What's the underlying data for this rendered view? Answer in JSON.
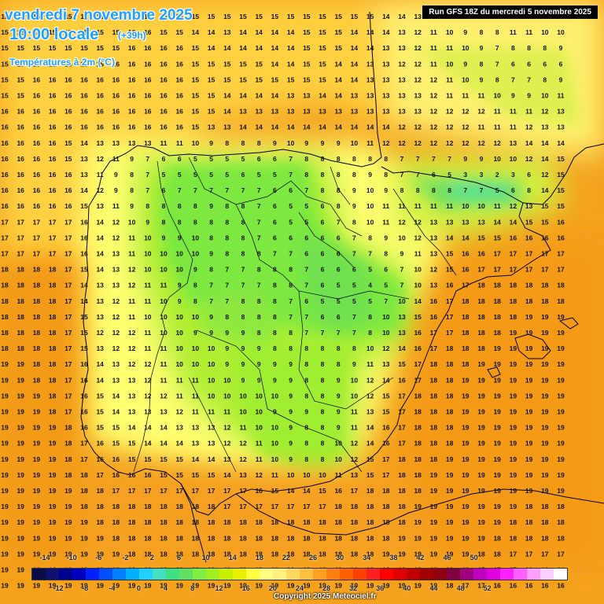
{
  "header": {
    "date": "vendredi 7 novembre 2025",
    "time": "10:00 locale",
    "lead": "(+39h)",
    "variable": "Températures à 2m (°C)",
    "run": "Run GFS 18Z du mercredi 5 novembre 2025"
  },
  "legend": {
    "top_ticks": [
      "-14",
      "-10",
      "-6",
      "-2",
      "2",
      "6",
      "10",
      "14",
      "18",
      "22",
      "26",
      "30",
      "34",
      "38",
      "42",
      "46",
      "50"
    ],
    "bottom_ticks": [
      "-12",
      "-8",
      "-4",
      "0",
      "4",
      "8",
      "12",
      "16",
      "20",
      "24",
      "28",
      "32",
      "36",
      "40",
      "44",
      "48",
      "52"
    ],
    "colors": [
      "#0b0b45",
      "#101070",
      "#000090",
      "#0000c0",
      "#0020ff",
      "#0050ff",
      "#0080ff",
      "#00b0ff",
      "#20d0ff",
      "#40e0c0",
      "#40e080",
      "#60e060",
      "#80f040",
      "#a0f020",
      "#c8f000",
      "#e8f000",
      "#ffff40",
      "#ffff80",
      "#fff080",
      "#ffd860",
      "#ffc040",
      "#ffa020",
      "#ff8010",
      "#ff6000",
      "#ff4000",
      "#ff2020",
      "#ff0000",
      "#e00000",
      "#c00000",
      "#a00000",
      "#900010",
      "#800040",
      "#a00080",
      "#c000c0",
      "#e000e0",
      "#ff20ff",
      "#ff60ff",
      "#ffa0ff",
      "#ffd0ff",
      "#ffffff"
    ]
  },
  "copyright": "Copyright 2025 Meteociel.fr",
  "grid_rows": [
    "15 15 15 15 15 15 15 15 15 15 15 15 15 15 15 15 15 15 15 15 15 15 15 15 14 14 13 12 11 10 9 8 11 11 11 11",
    "15 15 15 15 15 15 15 15 16 16 15 15 14 14 13 14 14 14 14 15 15 15 14 14 14 13 12 11 10 9 8 8 11 11 10 10",
    "15 15 15 15 15 15 15 15 16 16 16 16 15 14 14 14 14 14 14 15 15 15 14 14 13 13 12 11 11 10 9 7 8 8 8 9",
    "15 15 15 15 15 15 15 16 16 16 16 16 15 15 15 15 15 14 14 15 15 14 14 13 13 12 12 11 10 9 8 7 6 6 6 6",
    "15 15 16 16 16 16 16 16 16 16 16 16 15 15 15 15 15 15 15 15 15 14 14 13 13 13 12 12 11 10 9 8 7 7 8 9",
    "15 15 16 16 16 16 16 16 16 16 16 16 15 15 14 14 14 14 13 13 14 14 13 13 13 13 13 12 11 11 11 10 9 9 10 11",
    "16 16 16 16 16 16 16 16 16 16 16 16 15 15 14 13 13 13 13 13 13 13 13 13 13 13 13 12 12 12 12 11 11 11 12 13",
    "16 16 16 16 16 16 16 16 16 16 16 16 15 13 13 14 14 14 14 14 14 14 14 14 14 12 12 12 12 12 11 11 11 12 13 13",
    "16 16 16 16 15 14 13 13 13 13 11 11 10 9 8 8 8 9 10 9 9 9 10 11 12 12 12 12 12 12 12 12 13 14 14 14",
    "16 16 16 16 15 13 12 11 9 7 6 6 5 5 5 5 6 6 7 8 8 8 8 8 8 7 7 7 7 9 9 10 10 12 14 15",
    "16 16 16 16 16 13 11 9 8 7 5 5 5 5 5 6 5 5 7 8 8 8 8 9 8 7 7 6 5 3 3 2 3 6 12 15",
    "16 16 16 16 16 14 12 9 8 7 6 7 7 7 7 7 7 6 6 7 8 8 9 10 9 8 8 8 8 7 7 5 6 8 14 15",
    "16 16 16 16 16 15 13 11 9 8 8 8 8 9 8 8 7 6 5 5 6 8 9 10 11 11 11 11 11 10 10 11 12 13 15 15",
    "17 17 17 17 17 16 14 12 10 9 8 8 8 8 8 8 7 6 5 5 6 7 8 10 11 12 12 13 13 13 13 14 14 15 15 16",
    "17 17 17 17 17 16 14 12 11 10 9 9 10 8 8 8 7 6 6 6 6 6 7 8 9 10 12 13 14 14 15 15 16 16 16 16",
    "17 17 17 17 17 16 14 13 11 10 10 10 10 9 8 8 8 7 7 6 6 6 7 7 8 9 11 13 15 16 16 17 17 17 17 17",
    "18 18 18 18 17 15 14 13 12 10 10 10 9 8 7 7 8 8 8 7 6 6 6 5 6 7 10 12 15 16 17 17 17 17 17 17",
    "18 18 18 18 17 14 13 13 12 11 11 9 8 7 7 7 7 8 8 7 6 5 5 4 5 7 10 13 16 17 18 18 18 18 18 18",
    "18 18 18 18 17 14 13 12 11 11 10 9 8 7 7 8 8 8 7 6 5 5 5 5 7 10 14 16 17 18 18 18 18 18 18 18",
    "18 18 18 18 17 15 13 12 11 10 10 10 10 9 8 8 8 8 7 7 6 6 7 8 10 13 15 16 17 18 18 18 18 19 19 19",
    "18 18 18 18 17 15 12 12 12 11 10 10 9 9 9 9 8 8 8 7 7 7 7 8 10 13 16 17 17 18 18 18 19 19 19 19",
    "18 18 18 18 17 15 13 12 12 11 11 10 10 10 9 9 9 8 8 8 8 8 8 10 12 14 16 17 18 18 18 19 19 19 19 19",
    "19 19 18 18 17 16 14 13 12 12 11 10 10 10 9 9 9 9 9 8 8 8 9 11 13 15 17 18 18 18 19 19 19 19 19 19",
    "19 19 18 18 17 16 14 13 13 12 11 11 11 10 10 9 9 9 9 8 8 9 10 12 14 16 17 18 18 19 19 19 19 19 19 19",
    "19 19 19 18 17 16 15 14 13 12 12 11 11 10 10 10 10 10 9 8 8 9 10 12 15 17 18 18 18 19 19 19 19 19 19 19",
    "19 19 19 18 17 16 15 14 13 13 13 12 11 11 11 10 10 9 9 9 8 9 11 13 15 17 18 18 18 19 19 19 19 19 19 19",
    "19 19 19 19 18 16 15 15 14 14 14 13 13 13 12 11 10 10 9 8 8 9 11 14 16 17 18 18 18 19 19 19 19 19 19 19",
    "19 19 19 19 18 17 16 15 15 14 14 14 13 13 12 12 11 10 9 8 8 10 12 14 16 17 18 18 18 19 19 19 19 19 19 19",
    "19 19 19 19 18 17 16 16 15 15 15 15 14 14 13 12 11 10 9 8 8 10 12 15 17 18 18 18 19 19 19 19 19 19 19 19",
    "19 19 19 19 18 18 17 16 16 16 15 15 15 15 14 13 12 11 10 10 10 11 13 15 17 18 18 19 19 19 19 19 19 19 19 19",
    "19 19 19 19 19 18 18 17 17 17 17 17 17 17 17 17 16 15 14 14 15 16 17 18 18 18 18 19 19 19 19 19 19 19 19 19",
    "19 19 19 19 19 18 18 18 18 18 18 18 18 18 17 17 17 17 17 17 17 18 18 18 18 18 19 19 19 19 19 19 19 18 18 18",
    "19 19 19 19 19 19 18 18 18 18 18 18 18 18 18 18 18 18 18 18 18 18 18 18 18 18 19 19 19 19 19 19 18 18 18 18",
    "19 19 19 19 19 19 19 18 18 18 18 18 18 18 18 18 18 18 18 18 18 18 18 18 18 19 19 19 19 19 19 18 18 18 18 18",
    "19 19 19 19 19 19 19 19 18 18 18 18 18 18 18 18 18 18 18 18 18 18 18 18 19 19 19 19 19 19 18 18 17 17 17 17",
    "19 19 19 19 19 19 19 19 19 19 19 19 19 19 19 19 19 19 19 19 19 19 19 19 19 19 19 19 18 18 17 17 17 16 16 16",
    "19 19 19 19 19 19 19 19 19 19 19 19 19 19 19 19 19 19 19 19 19 19 19 19 19 19 19 19 18 17 17 16 16 16 16 16"
  ]
}
